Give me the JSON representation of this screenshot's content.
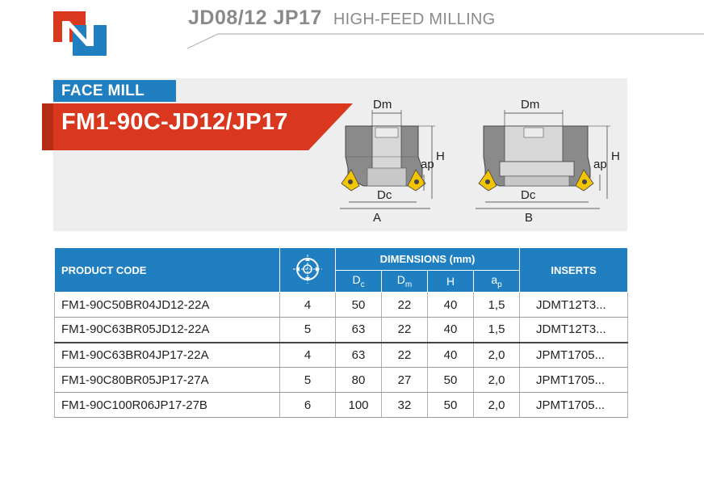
{
  "header": {
    "code": "JD08/12 JP17",
    "subtitle": "HIGH-FEED MILLING"
  },
  "hero": {
    "tag": "FACE MILL",
    "product": "FM1-90C-JD12/JP17"
  },
  "drawing": {
    "labels": {
      "dm": "Dm",
      "dc": "Dc",
      "h": "H",
      "ap": "ap",
      "a": "A",
      "b": "B"
    }
  },
  "table": {
    "headers": {
      "code": "PRODUCT CODE",
      "dimensions": "DIMENSIONS (mm)",
      "dc_main": "D",
      "dc_sub": "c",
      "dm_main": "D",
      "dm_sub": "m",
      "h": "H",
      "ap_main": "a",
      "ap_sub": "p",
      "inserts": "INSERTS",
      "teeth_icon": "cutter-teeth-icon"
    },
    "rows": [
      {
        "code": "FM1-90C50BR04JD12-22A",
        "z": "4",
        "dc": "50",
        "dm": "22",
        "h": "40",
        "ap": "1,5",
        "insert": "JDMT12T3..."
      },
      {
        "code": "FM1-90C63BR05JD12-22A",
        "z": "5",
        "dc": "63",
        "dm": "22",
        "h": "40",
        "ap": "1,5",
        "insert": "JDMT12T3..."
      },
      {
        "code": "FM1-90C63BR04JP17-22A",
        "z": "4",
        "dc": "63",
        "dm": "22",
        "h": "40",
        "ap": "2,0",
        "insert": "JPMT1705..."
      },
      {
        "code": "FM1-90C80BR05JP17-27A",
        "z": "5",
        "dc": "80",
        "dm": "27",
        "h": "50",
        "ap": "2,0",
        "insert": "JPMT1705..."
      },
      {
        "code": "FM1-90C100R06JP17-27B",
        "z": "6",
        "dc": "100",
        "dm": "32",
        "h": "50",
        "ap": "2,0",
        "insert": "JPMT1705..."
      }
    ]
  },
  "colors": {
    "brand_blue": "#1f7fc1",
    "brand_red": "#d9381e",
    "header_grey": "#8a8a8a",
    "insert_yellow": "#f2c500"
  }
}
